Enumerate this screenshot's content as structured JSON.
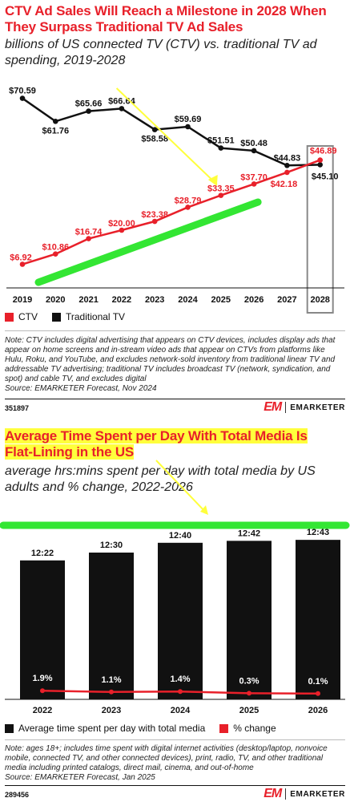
{
  "panel1": {
    "title": "CTV Ad Sales Will Reach a Milestone in 2028 When They Surpass Traditional TV Ad Sales",
    "subtitle": "billions of US connected TV (CTV) vs. traditional TV ad spending, 2019-2028",
    "legend": [
      "CTV",
      "Traditional TV"
    ],
    "note": "Note: CTV includes digital advertising that appears on CTV devices, includes display ads that appear on home screens and in-stream video ads that appear on CTVs from platforms like Hulu, Roku, and YouTube, and excludes network-sold inventory from traditional linear TV and addressable TV advertising; traditional TV includes broadcast TV (network, syndication, and spot) and cable TV, and excludes digital",
    "source": "Source: EMARKETER Forecast, Nov 2024",
    "chart_id": "351897",
    "brand": "EMARKETER"
  },
  "panel2": {
    "title_line1": "Average Time Spent per Day With Total Media Is",
    "title_line2": "Flat-Lining in the US",
    "subtitle": "average hrs:mins spent per day with total media by US adults and % change, 2022-2026",
    "legend": [
      "Average time spent per day with total media",
      "% change"
    ],
    "note": "Note: ages 18+; includes time spent with digital internet activities (desktop/laptop, nonvoice mobile, connected TV, and other connected devices), print, radio, TV, and other traditional media including printed catalogs, direct mail, cinema, and out-of-home",
    "source": "Source: EMARKETER Forecast, Jan 2025",
    "chart_id": "289456",
    "brand": "EMARKETER"
  },
  "colors": {
    "ctv": "#e8202a",
    "traditional": "#111111",
    "highlight_arrow": "#ffff3c",
    "highlight_line": "#33e633"
  },
  "chart_data": [
    {
      "type": "line",
      "categories": [
        "2019",
        "2020",
        "2021",
        "2022",
        "2023",
        "2024",
        "2025",
        "2026",
        "2027",
        "2028"
      ],
      "series": [
        {
          "name": "CTV",
          "values": [
            6.92,
            10.86,
            16.74,
            20.0,
            23.38,
            28.79,
            33.35,
            37.7,
            42.18,
            46.89
          ],
          "labels": [
            "$6.92",
            "$10.86",
            "$16.74",
            "$20.00",
            "$23.38",
            "$28.79",
            "$33.35",
            "$37.70",
            "$42.18",
            "$46.89"
          ]
        },
        {
          "name": "Traditional TV",
          "values": [
            70.59,
            61.76,
            65.66,
            66.64,
            58.58,
            59.69,
            51.51,
            50.48,
            44.83,
            45.1
          ],
          "labels": [
            "$70.59",
            "$61.76",
            "$65.66",
            "$66.64",
            "$58.58",
            "$59.69",
            "$51.51",
            "$50.48",
            "$44.83",
            "$45.10"
          ]
        }
      ],
      "ylim": [
        0,
        80
      ],
      "grid": false,
      "legend_position": "bottom-left"
    },
    {
      "type": "bar",
      "categories": [
        "2022",
        "2023",
        "2024",
        "2025",
        "2026"
      ],
      "series": [
        {
          "name": "Average time spent per day with total media",
          "values": [
            742,
            750,
            760,
            762,
            763
          ],
          "labels": [
            "12:22",
            "12:30",
            "12:40",
            "12:42",
            "12:43"
          ]
        },
        {
          "name": "% change",
          "values": [
            1.9,
            1.1,
            1.4,
            0.3,
            0.1
          ],
          "labels": [
            "1.9%",
            "1.1%",
            "1.4%",
            "0.3%",
            "0.1%"
          ]
        }
      ],
      "grid": false,
      "legend_position": "bottom-left"
    }
  ]
}
